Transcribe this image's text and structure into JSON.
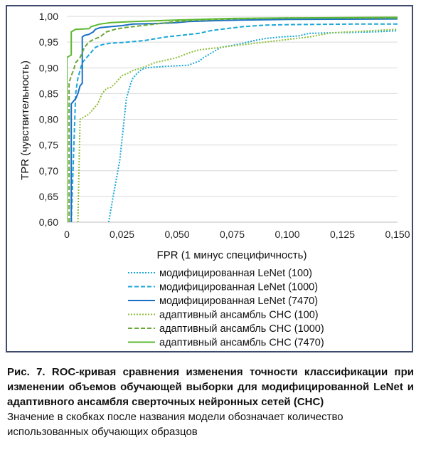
{
  "chart_data": {
    "type": "line",
    "xlabel": "FPR (1 минус специфичность)",
    "ylabel": "TPR (чувствительность)",
    "xlim": [
      0,
      0.15
    ],
    "ylim": [
      0.6,
      1.0
    ],
    "xticks": [
      "0",
      "0,025",
      "0,050",
      "0,075",
      "0,100",
      "0,125",
      "0,150"
    ],
    "yticks": [
      "0,60",
      "0,65",
      "0,70",
      "0,75",
      "0,80",
      "0,85",
      "0,90",
      "0,95",
      "1,00"
    ],
    "grid": "horizontal",
    "legend_position": "bottom",
    "series": [
      {
        "name": "модифицированная LeNet (100)",
        "color": "#1aa7d8",
        "dash": "dotted",
        "x": [
          0.019,
          0.021,
          0.024,
          0.026,
          0.027,
          0.029,
          0.03,
          0.032,
          0.034,
          0.036,
          0.045,
          0.055,
          0.06,
          0.062,
          0.066,
          0.07,
          0.077,
          0.085,
          0.09,
          0.097,
          0.105,
          0.11,
          0.14,
          0.15
        ],
        "y": [
          0.6,
          0.65,
          0.72,
          0.8,
          0.84,
          0.87,
          0.88,
          0.89,
          0.897,
          0.9,
          0.903,
          0.905,
          0.913,
          0.92,
          0.93,
          0.94,
          0.945,
          0.953,
          0.957,
          0.96,
          0.962,
          0.967,
          0.97,
          0.972
        ]
      },
      {
        "name": "модифицированная LeNet (1000)",
        "color": "#1aa7d8",
        "dash": "dashed",
        "x": [
          0.002,
          0.004,
          0.005,
          0.007,
          0.009,
          0.011,
          0.013,
          0.016,
          0.02,
          0.025,
          0.035,
          0.045,
          0.06,
          0.065,
          0.07,
          0.08,
          0.09,
          0.1,
          0.13,
          0.15
        ],
        "y": [
          0.6,
          0.85,
          0.88,
          0.91,
          0.92,
          0.93,
          0.94,
          0.945,
          0.948,
          0.949,
          0.953,
          0.96,
          0.967,
          0.972,
          0.975,
          0.98,
          0.983,
          0.984,
          0.985,
          0.985
        ]
      },
      {
        "name": "модифицированная LeNet (7470)",
        "color": "#1a6fc4",
        "dash": "solid",
        "x": [
          0.002,
          0.002,
          0.004,
          0.005,
          0.006,
          0.007,
          0.007,
          0.008,
          0.01,
          0.012,
          0.013,
          0.015,
          0.02,
          0.025,
          0.03,
          0.04,
          0.05,
          0.055,
          0.07,
          0.08,
          0.1,
          0.15
        ],
        "y": [
          0.6,
          0.83,
          0.84,
          0.85,
          0.865,
          0.87,
          0.96,
          0.963,
          0.965,
          0.97,
          0.975,
          0.978,
          0.98,
          0.982,
          0.985,
          0.986,
          0.988,
          0.99,
          0.992,
          0.993,
          0.994,
          0.995
        ]
      },
      {
        "name": "адаптивный ансамбль СНС (100)",
        "color": "#8fbf3a",
        "dash": "dotted",
        "x": [
          0.005,
          0.006,
          0.008,
          0.01,
          0.012,
          0.014,
          0.016,
          0.018,
          0.02,
          0.022,
          0.025,
          0.028,
          0.03,
          0.034,
          0.04,
          0.045,
          0.05,
          0.056,
          0.06,
          0.07,
          0.08,
          0.09,
          0.1,
          0.11,
          0.12,
          0.15
        ],
        "y": [
          0.6,
          0.8,
          0.805,
          0.81,
          0.82,
          0.83,
          0.85,
          0.86,
          0.862,
          0.87,
          0.885,
          0.89,
          0.895,
          0.9,
          0.91,
          0.915,
          0.92,
          0.93,
          0.935,
          0.94,
          0.945,
          0.95,
          0.955,
          0.96,
          0.968,
          0.975
        ]
      },
      {
        "name": "адаптивный ансамбль СНС (1000)",
        "color": "#6aa737",
        "dash": "dashed",
        "x": [
          0.001,
          0.001,
          0.002,
          0.003,
          0.004,
          0.006,
          0.008,
          0.01,
          0.012,
          0.015,
          0.018,
          0.022,
          0.026,
          0.03,
          0.04,
          0.05,
          0.06,
          0.075,
          0.1,
          0.15
        ],
        "y": [
          0.6,
          0.87,
          0.885,
          0.895,
          0.91,
          0.92,
          0.94,
          0.95,
          0.955,
          0.96,
          0.97,
          0.975,
          0.978,
          0.98,
          0.985,
          0.99,
          0.993,
          0.995,
          0.997,
          0.997
        ]
      },
      {
        "name": "адаптивный ансамбль СНС (7470)",
        "color": "#5db832",
        "dash": "solid",
        "x": [
          0.0,
          0.0,
          0.002,
          0.002,
          0.004,
          0.005,
          0.01,
          0.011,
          0.015,
          0.02,
          0.03,
          0.05,
          0.075,
          0.1,
          0.15
        ],
        "y": [
          0.6,
          0.92,
          0.925,
          0.97,
          0.975,
          0.975,
          0.976,
          0.98,
          0.985,
          0.988,
          0.99,
          0.993,
          0.996,
          0.997,
          0.998
        ]
      }
    ]
  },
  "caption": {
    "title": "Рис. 7. ROC-кривая сравнения изменения точности классификации при изменении объемов обучающей выборки для модифицированной LeNet и адаптивного ансамбля сверточных нейронных сетей (СНС)",
    "note": "Значение в скобках после названия модели обозначает количество использованных обучающих образцов"
  }
}
